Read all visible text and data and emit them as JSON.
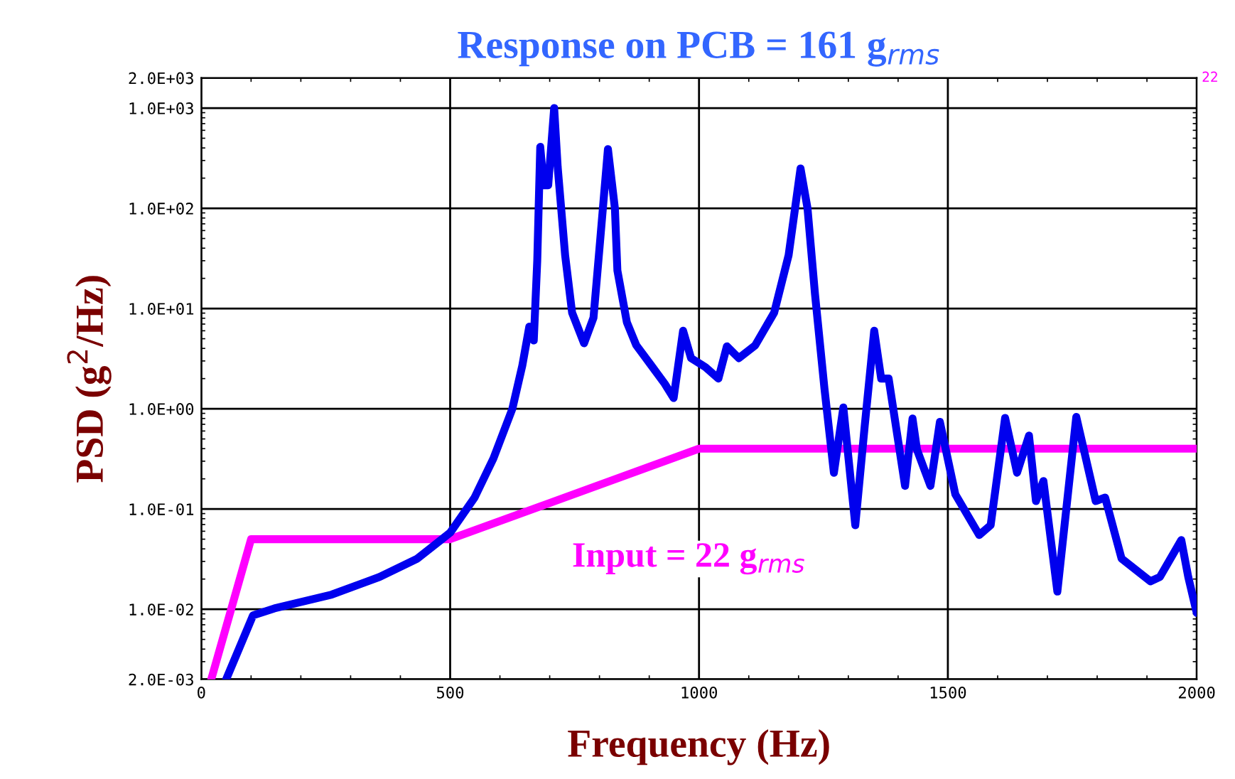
{
  "chart_data": {
    "type": "line",
    "title": "Response on PCB = 161 g$_{rms}$",
    "xlabel": "Frequency (Hz)",
    "ylabel": "PSD (g$^{2}$/Hz)",
    "annotations": [
      "Input = 22 g$_{rms}$",
      "22"
    ],
    "log": "y",
    "grid": true,
    "legend": false,
    "marker": "none",
    "line_style": "solid",
    "xlim": [
      0,
      2000
    ],
    "xticks": [
      0,
      500,
      1000,
      1500,
      2000
    ],
    "ylim": [
      0.002,
      2000
    ],
    "yticks": [
      {
        "value": 0.002,
        "label": "2.0E-03"
      },
      {
        "value": 0.01,
        "label": "1.0E-02"
      },
      {
        "value": 0.1,
        "label": "1.0E-01"
      },
      {
        "value": 1,
        "label": "1.0E+00"
      },
      {
        "value": 10,
        "label": "1.0E+01"
      },
      {
        "value": 100,
        "label": "1.0E+02"
      },
      {
        "value": 1000,
        "label": "1.0E+03"
      },
      {
        "value": 2000,
        "label": "2.0E+03"
      }
    ],
    "series": [
      {
        "color": "#0000ee",
        "x": [
          50,
          104,
          147,
          262,
          358,
          434,
          500,
          549,
          587,
          625,
          645,
          659,
          668,
          675,
          681,
          688,
          697,
          709,
          716,
          731,
          745,
          769,
          788,
          802,
          817,
          831,
          836,
          855,
          874,
          903,
          931,
          949,
          968,
          984,
          1013,
          1039,
          1056,
          1080,
          1113,
          1151,
          1180,
          1204,
          1218,
          1233,
          1252,
          1271,
          1290,
          1314,
          1333,
          1352,
          1366,
          1381,
          1414,
          1429,
          1438,
          1465,
          1484,
          1515,
          1563,
          1586,
          1615,
          1639,
          1663,
          1677,
          1692,
          1720,
          1758,
          1797,
          1816,
          1849,
          1907,
          1926,
          1969,
          1983,
          2000
        ],
        "values": [
          0.002,
          0.0087,
          0.0102,
          0.014,
          0.021,
          0.032,
          0.058,
          0.13,
          0.32,
          1.0,
          2.7,
          6.6,
          4.8,
          30,
          410,
          170,
          170,
          1000,
          260,
          34,
          9.1,
          4.5,
          8.1,
          52,
          390,
          100,
          24,
          7.3,
          4.3,
          2.75,
          1.78,
          1.28,
          6.0,
          3.2,
          2.6,
          2.0,
          4.2,
          3.2,
          4.3,
          9.1,
          34,
          250,
          100,
          14,
          1.6,
          0.23,
          1.03,
          0.069,
          0.68,
          6.0,
          2.0,
          2.0,
          0.17,
          0.8,
          0.39,
          0.17,
          0.74,
          0.14,
          0.055,
          0.069,
          0.81,
          0.23,
          0.54,
          0.12,
          0.19,
          0.015,
          0.83,
          0.12,
          0.13,
          0.032,
          0.019,
          0.021,
          0.049,
          0.021,
          0.0092
        ]
      },
      {
        "color": "#ff00ff",
        "x": [
          20,
          100,
          500,
          1000,
          2000
        ],
        "values": [
          0.002,
          0.05,
          0.05,
          0.4,
          0.4
        ]
      }
    ]
  }
}
